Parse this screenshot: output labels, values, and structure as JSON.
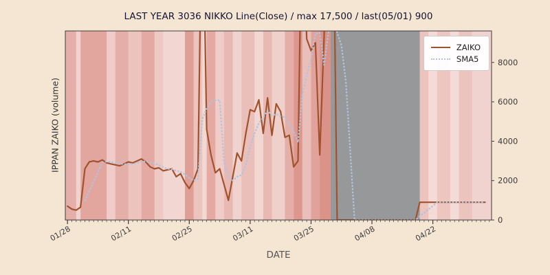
{
  "figure": {
    "background": "#f5e6d3"
  },
  "chart_data": {
    "type": "line",
    "title": "LAST YEAR 3036 NIKKO Line(Close) / max 17,500 / last(05/01) 900",
    "xlabel": "DATE",
    "ylabel": "IPPAN ZAIKO (volume)",
    "annotations": {
      "stated_max": "17,500",
      "last": {
        "date": "05/01",
        "value": 900
      }
    },
    "xlim": [
      -0.5,
      97.5
    ],
    "ylim": [
      0,
      9600
    ],
    "start_date": "01/28",
    "xticks": [
      {
        "day": 0,
        "label": "01/28"
      },
      {
        "day": 14,
        "label": "02/11"
      },
      {
        "day": 28,
        "label": "02/25"
      },
      {
        "day": 42,
        "label": "03/11"
      },
      {
        "day": 56,
        "label": "03/25"
      },
      {
        "day": 70,
        "label": "04/08"
      },
      {
        "day": 84,
        "label": "04/22"
      }
    ],
    "yticks": [
      {
        "value": 0,
        "label": "0"
      },
      {
        "value": 2000,
        "label": "2000"
      },
      {
        "value": 4000,
        "label": "4000"
      },
      {
        "value": 6000,
        "label": "6000"
      },
      {
        "value": 8000,
        "label": "8000"
      }
    ],
    "legend_position": "upper-right",
    "colors": {
      "plot_bg": "#fbf0ed",
      "zaiko": "#a0522d",
      "sma5": "#b0c4de",
      "spine": "#3c3c3c",
      "band_red_base": "rgb(196,78,66)",
      "band_gray": "rgba(128,132,136,0.82)"
    },
    "series": [
      {
        "name": "ZAIKO",
        "style": "solid",
        "color": "#a0522d",
        "values_are_daily_from_start_date": true,
        "values": [
          700,
          550,
          500,
          650,
          2600,
          2950,
          3000,
          2950,
          3050,
          2900,
          2850,
          2800,
          2750,
          2850,
          2950,
          2900,
          3000,
          3100,
          2950,
          2700,
          2600,
          2650,
          2500,
          2550,
          2600,
          2200,
          2350,
          1900,
          1600,
          2000,
          2600,
          17500,
          4600,
          3300,
          2400,
          2600,
          1800,
          1000,
          2200,
          3400,
          3000,
          4400,
          5600,
          5500,
          6100,
          4400,
          6200,
          4300,
          5900,
          5500,
          4200,
          4300,
          2700,
          3000,
          17500,
          9200,
          8600,
          9000,
          3300,
          9300,
          17500,
          17500,
          0,
          0,
          0,
          0,
          0,
          0,
          0,
          0,
          0,
          0,
          0,
          0,
          0,
          0,
          0,
          0,
          0,
          0,
          0,
          900,
          900,
          900,
          900,
          900,
          900,
          900,
          900,
          900,
          900,
          900,
          900,
          900,
          900,
          900,
          900
        ]
      },
      {
        "name": "SMA5",
        "style": "dotted",
        "color": "#b0c4de",
        "derived": "5-day moving average of ZAIKO"
      }
    ],
    "bands": [
      {
        "from": -0.5,
        "to": 2,
        "color": "rgba(196,78,66,0.40)"
      },
      {
        "from": 2,
        "to": 3,
        "color": "rgba(196,78,66,0.18)"
      },
      {
        "from": 3,
        "to": 9,
        "color": "rgba(196,78,66,0.46)"
      },
      {
        "from": 9,
        "to": 11,
        "color": "rgba(196,78,66,0.22)"
      },
      {
        "from": 11,
        "to": 14,
        "color": "rgba(196,78,66,0.40)"
      },
      {
        "from": 14,
        "to": 17,
        "color": "rgba(196,78,66,0.28)"
      },
      {
        "from": 17,
        "to": 20,
        "color": "rgba(196,78,66,0.44)"
      },
      {
        "from": 20,
        "to": 22,
        "color": "rgba(196,78,66,0.24)"
      },
      {
        "from": 22,
        "to": 27,
        "color": "rgba(196,78,66,0.16)"
      },
      {
        "from": 27,
        "to": 29,
        "color": "rgba(196,78,66,0.50)"
      },
      {
        "from": 29,
        "to": 31,
        "color": "rgba(196,78,66,0.28)"
      },
      {
        "from": 31,
        "to": 32,
        "color": "rgba(196,78,66,0.14)"
      },
      {
        "from": 32,
        "to": 34,
        "color": "rgba(196,78,66,0.44)"
      },
      {
        "from": 34,
        "to": 36,
        "color": "rgba(196,78,66,0.22)"
      },
      {
        "from": 36,
        "to": 38,
        "color": "rgba(196,78,66,0.34)"
      },
      {
        "from": 38,
        "to": 40,
        "color": "rgba(196,78,66,0.18)"
      },
      {
        "from": 40,
        "to": 43,
        "color": "rgba(196,78,66,0.30)"
      },
      {
        "from": 43,
        "to": 45,
        "color": "rgba(196,78,66,0.16)"
      },
      {
        "from": 45,
        "to": 47,
        "color": "rgba(196,78,66,0.34)"
      },
      {
        "from": 47,
        "to": 50,
        "color": "rgba(196,78,66,0.20)"
      },
      {
        "from": 50,
        "to": 52,
        "color": "rgba(196,78,66,0.40)"
      },
      {
        "from": 52,
        "to": 54,
        "color": "rgba(196,78,66,0.55)"
      },
      {
        "from": 54,
        "to": 56,
        "color": "rgba(196,78,66,0.30)"
      },
      {
        "from": 56,
        "to": 58,
        "color": "rgba(196,78,66,0.48)"
      },
      {
        "from": 58,
        "to": 60.5,
        "color": "rgba(196,78,66,0.58)"
      },
      {
        "from": 60.5,
        "to": 81,
        "color": "rgba(128,132,136,0.82)"
      },
      {
        "from": 81,
        "to": 83,
        "color": "rgba(196,78,66,0.28)"
      },
      {
        "from": 83,
        "to": 85,
        "color": "rgba(196,78,66,0.12)"
      },
      {
        "from": 85,
        "to": 88,
        "color": "rgba(196,78,66,0.26)"
      },
      {
        "from": 88,
        "to": 90,
        "color": "rgba(196,78,66,0.12)"
      },
      {
        "from": 90,
        "to": 93,
        "color": "rgba(196,78,66,0.28)"
      },
      {
        "from": 93,
        "to": 97.5,
        "color": "rgba(196,78,66,0.18)"
      }
    ]
  }
}
